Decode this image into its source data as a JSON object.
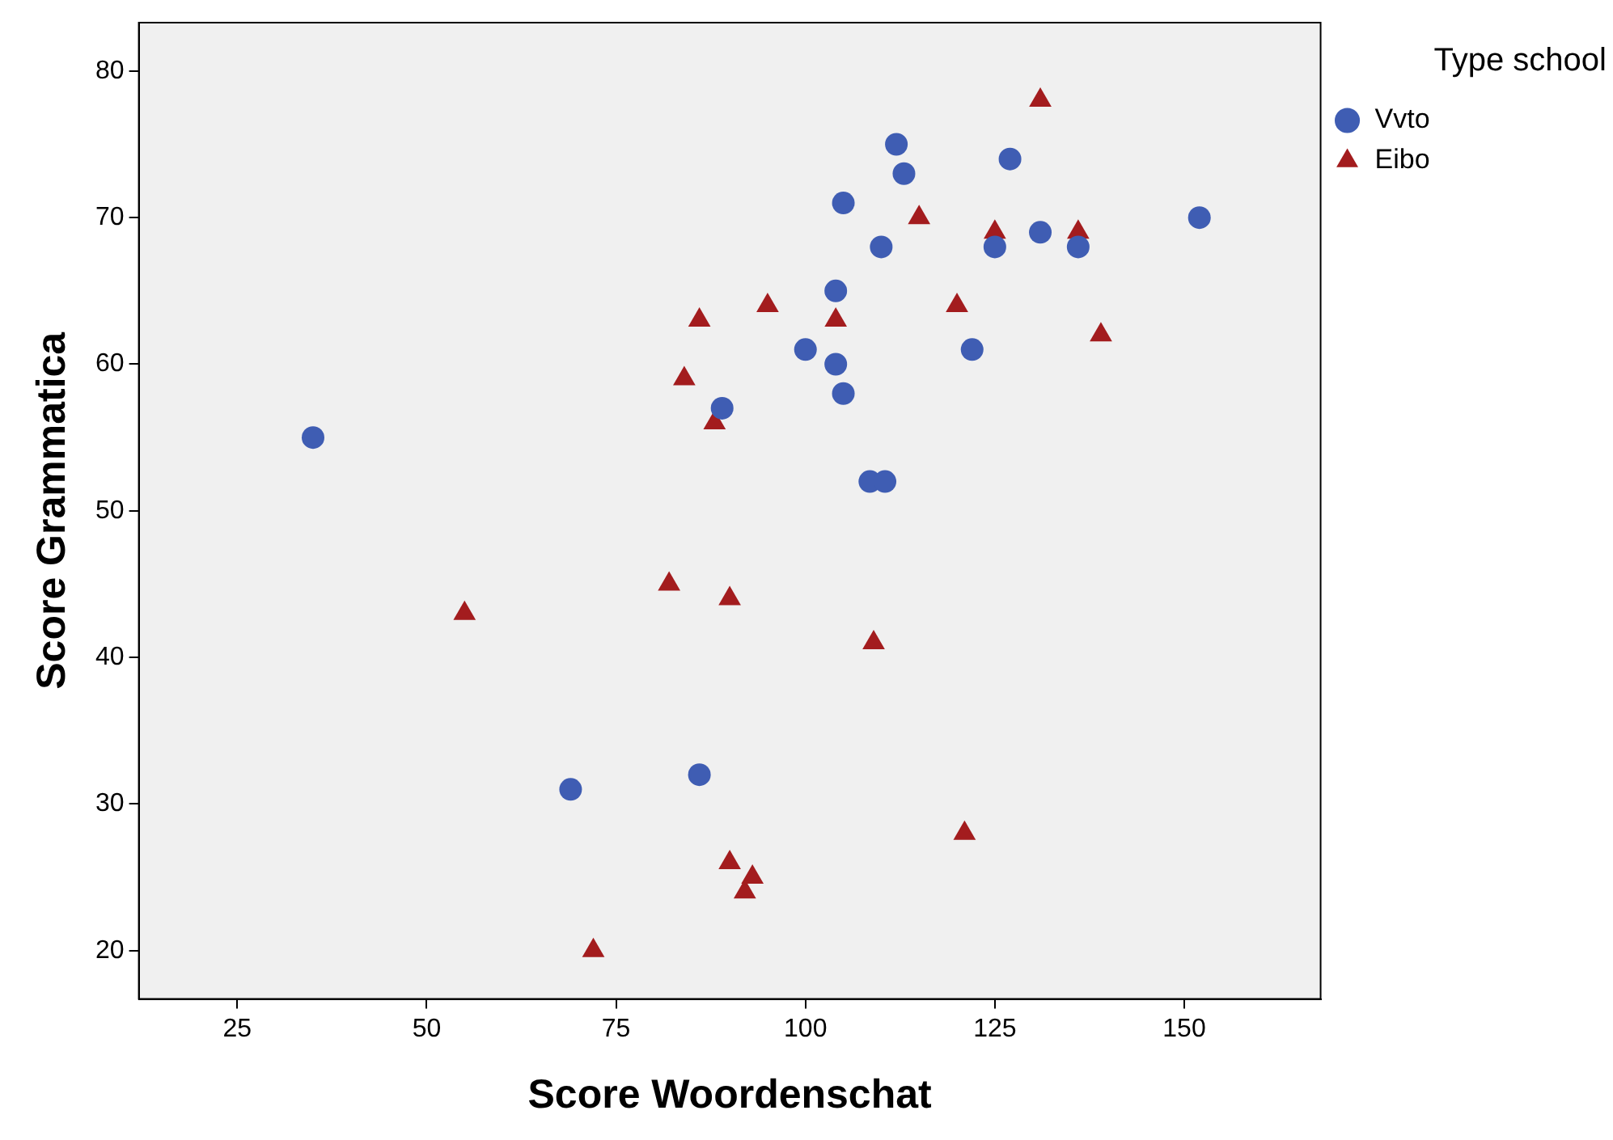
{
  "chart_data": {
    "type": "scatter",
    "xlabel": "Score Woordenschat",
    "ylabel": "Score Grammatica",
    "legend_title": "Type school",
    "legend": "top right",
    "grid": false,
    "xlim": [
      12,
      168
    ],
    "xticks": [
      25,
      50,
      75,
      100,
      125,
      150
    ],
    "ylim": [
      16.7,
      83.3
    ],
    "yticks": [
      20,
      30,
      40,
      50,
      60,
      70,
      80
    ],
    "series": [
      {
        "name": "Vvto",
        "color": "#3f5db3",
        "marker": "circle",
        "x": [
          35,
          69,
          86,
          89,
          100,
          104,
          104,
          105,
          105,
          108.5,
          110.5,
          110,
          112,
          113,
          122,
          125,
          127,
          131,
          136,
          152
        ],
        "values": [
          55,
          31,
          32,
          57,
          61,
          65,
          60,
          71,
          58,
          52,
          52,
          68,
          75,
          73,
          61,
          68,
          74,
          69,
          68,
          70
        ]
      },
      {
        "name": "Eibo",
        "color": "#a31c1e",
        "marker": "triangle",
        "x": [
          55,
          72,
          82,
          84,
          86,
          88,
          90,
          90,
          92,
          93,
          95,
          104,
          109,
          115,
          120,
          121,
          125,
          131,
          136,
          139
        ],
        "values": [
          43,
          20,
          45,
          59,
          63,
          56,
          44,
          26,
          24,
          25,
          64,
          63,
          41,
          70,
          64,
          28,
          69,
          78,
          69,
          62
        ]
      }
    ]
  }
}
